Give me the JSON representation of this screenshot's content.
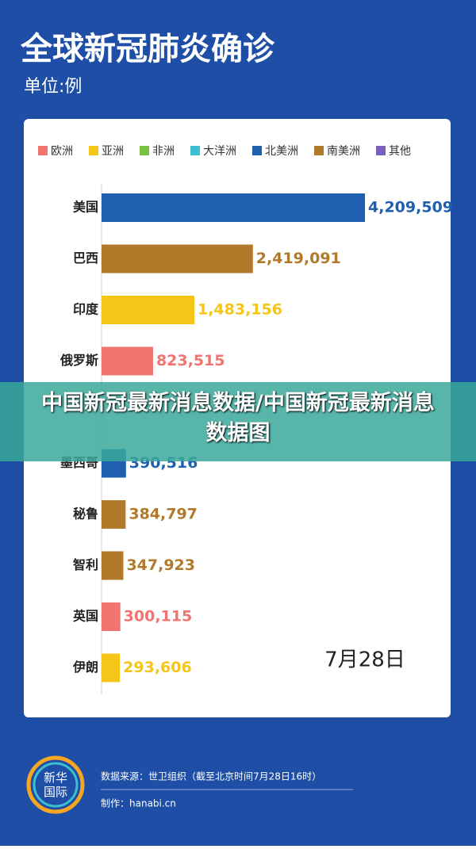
{
  "title": "全球新冠肺炎确诊",
  "subtitle": "单位:例",
  "chart_data": {
    "type": "bar",
    "orientation": "horizontal",
    "legend": [
      {
        "name": "欧洲",
        "color": "#f07470"
      },
      {
        "name": "亚洲",
        "color": "#f5c518"
      },
      {
        "name": "非洲",
        "color": "#7cc242"
      },
      {
        "name": "大洋洲",
        "color": "#3cbfcf"
      },
      {
        "name": "北美洲",
        "color": "#1f5fb0"
      },
      {
        "name": "南美洲",
        "color": "#b07a2a"
      },
      {
        "name": "其他",
        "color": "#7a5fc0"
      }
    ],
    "categories": [
      "美国",
      "巴西",
      "印度",
      "俄罗斯",
      null,
      "墨西哥",
      "秘鲁",
      "智利",
      "英国",
      "伊朗"
    ],
    "values": [
      4209509,
      2419091,
      1483156,
      823515,
      null,
      390516,
      384797,
      347923,
      300115,
      293606
    ],
    "value_labels": [
      "4,209,509",
      "2,419,091",
      "1,483,156",
      "823,515",
      null,
      "390,516",
      "384,797",
      "347,923",
      "300,115",
      "293,606"
    ],
    "colors": [
      "#1f5fb0",
      "#b07a2a",
      "#f5c518",
      "#f07470",
      null,
      "#1f5fb0",
      "#b07a2a",
      "#b07a2a",
      "#f07470",
      "#f5c518"
    ],
    "annotation": "7月28日"
  },
  "overlay": "中国新冠最新消息数据/中国新冠最新消息数据图",
  "footer": {
    "logo": "新华国际",
    "source": "数据来源：世卫组织（截至北京时间7月28日16时）",
    "maker": "制作：hanabi.cn"
  }
}
